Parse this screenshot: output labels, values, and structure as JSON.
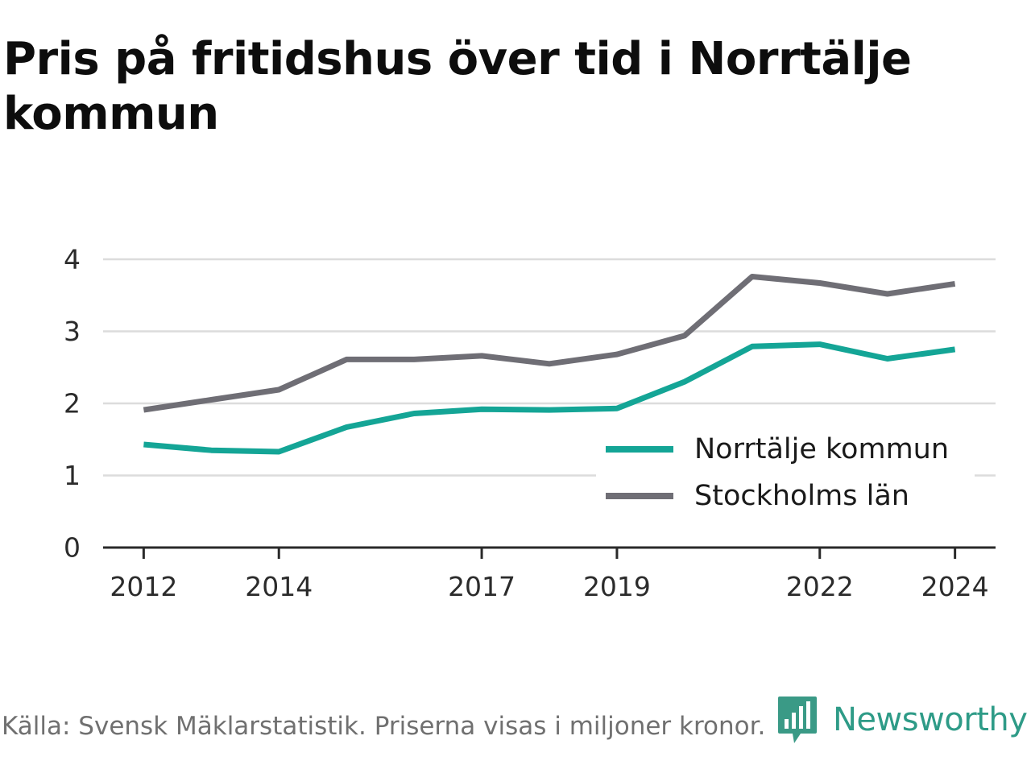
{
  "title": "Pris på fritidshus över tid i Norrtälje kommun",
  "chart_data": {
    "type": "line",
    "title": "Pris på fritidshus över tid i Norrtälje kommun",
    "xlabel": "",
    "ylabel": "",
    "x": [
      2012,
      2013,
      2014,
      2015,
      2016,
      2017,
      2018,
      2019,
      2020,
      2021,
      2022,
      2023,
      2024
    ],
    "x_ticks": [
      "2012",
      "2014",
      "2017",
      "2019",
      "2022",
      "2024"
    ],
    "y_ticks": [
      "0",
      "1",
      "2",
      "3",
      "4"
    ],
    "xlim": [
      2011.4,
      2024.6
    ],
    "ylim": [
      0,
      4
    ],
    "grid": true,
    "legend_position": "bottom-right",
    "series": [
      {
        "name": "Norrtälje kommun",
        "color": "#14a596",
        "values": [
          1.43,
          1.35,
          1.33,
          1.67,
          1.86,
          1.92,
          1.91,
          1.93,
          2.3,
          2.79,
          2.82,
          2.62,
          2.75
        ]
      },
      {
        "name": "Stockholms län",
        "color": "#6f6e75",
        "values": [
          1.91,
          2.05,
          2.19,
          2.61,
          2.61,
          2.66,
          2.55,
          2.68,
          2.94,
          3.76,
          3.67,
          3.52,
          3.66
        ]
      }
    ]
  },
  "footer": {
    "source": "Källa: Svensk Mäklarstatistik. Priserna visas i miljoner kronor."
  },
  "brand": {
    "name": "Newsworthy",
    "color": "#2e9b87",
    "icon": "bar-chart-speech-bubble-icon"
  }
}
